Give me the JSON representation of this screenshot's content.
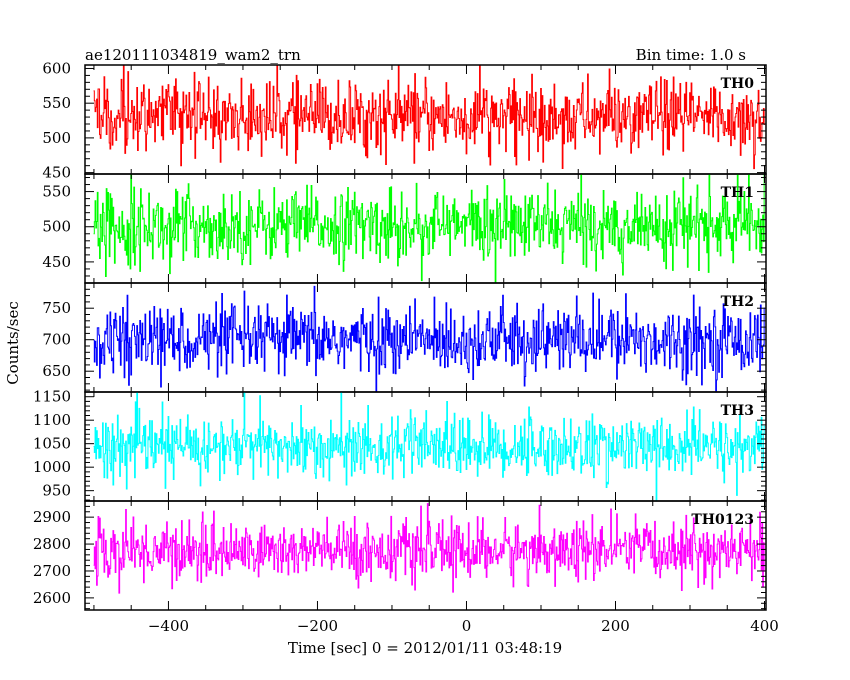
{
  "header": {
    "title": "ae120111034819_wam2_trn",
    "bin_time": "Bin time: 1.0 s"
  },
  "chart_data": {
    "type": "line",
    "x": {
      "label": "Time [sec] 0 = 2012/01/11 03:48:19",
      "range": [
        -512,
        402
      ],
      "ticks": [
        -400,
        -200,
        0,
        200,
        400
      ],
      "tick_labels": [
        "−400",
        "−200",
        "0",
        "200",
        "400"
      ],
      "minor_step": 50,
      "bin_time": 1.0
    },
    "ylabel": "Counts/sec",
    "panels": [
      {
        "name": "TH0",
        "color": "#ff0000",
        "ylim": [
          448,
          605
        ],
        "ticks": [
          450,
          500,
          550,
          600
        ],
        "minor_step": 10,
        "mean": 530,
        "spread": 26,
        "values": []
      },
      {
        "name": "TH1",
        "color": "#00ff00",
        "ylim": [
          420,
          575
        ],
        "ticks": [
          450,
          500,
          550
        ],
        "minor_step": 10,
        "mean": 502,
        "spread": 25,
        "values": []
      },
      {
        "name": "TH2",
        "color": "#0000ff",
        "ylim": [
          617,
          790
        ],
        "ticks": [
          650,
          700,
          750
        ],
        "minor_step": 10,
        "mean": 700,
        "spread": 27,
        "values": []
      },
      {
        "name": "TH3",
        "color": "#00ffff",
        "ylim": [
          928,
          1160
        ],
        "ticks": [
          950,
          1000,
          1050,
          1100,
          1150
        ],
        "minor_step": 10,
        "mean": 1043,
        "spread": 33,
        "values": []
      },
      {
        "name": "TH0123",
        "color": "#ff00ff",
        "ylim": [
          2555,
          2960
        ],
        "ticks": [
          2600,
          2700,
          2800,
          2900
        ],
        "minor_step": 20,
        "mean": 2775,
        "spread": 55,
        "values": []
      }
    ]
  }
}
